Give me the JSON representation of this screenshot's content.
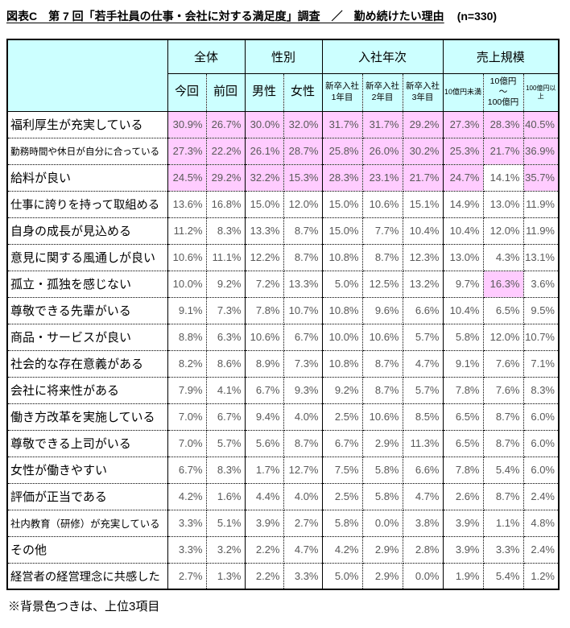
{
  "colors": {
    "header_bg": "#CCFFFF",
    "highlight_bg": "#FFCCFF",
    "value_text": "#595959",
    "border": "#000000"
  },
  "chart_data": {
    "type": "table",
    "title": "図表C　第 7 回「若手社員の仕事・会社に対する満足度」調査　／　勤め続けたい理由",
    "sample_size": "(n=330)",
    "footnote": "※背景色つきは、上位3項目",
    "highlight_rule": "pink background = top 3 items within each column",
    "column_groups": [
      {
        "label": "全体",
        "span": 2
      },
      {
        "label": "性別",
        "span": 2
      },
      {
        "label": "入社年次",
        "span": 3
      },
      {
        "label": "売上規模",
        "span": 3
      }
    ],
    "columns": [
      "今回",
      "前回",
      "男性",
      "女性",
      "新卒入社\n1年目",
      "新卒入社\n2年目",
      "新卒入社\n3年目",
      "10億円未満",
      "10億円\n～\n100億円",
      "100億円以上"
    ],
    "rows": [
      {
        "label": "福利厚生が充実している",
        "values": [
          "30.9%",
          "26.7%",
          "30.0%",
          "32.0%",
          "31.7%",
          "31.7%",
          "29.2%",
          "27.3%",
          "28.3%",
          "40.5%"
        ],
        "pink": [
          0,
          1,
          2,
          3,
          4,
          5,
          6,
          7,
          8,
          9
        ]
      },
      {
        "label": "勤務時間や休日が自分に合っている",
        "values": [
          "27.3%",
          "22.2%",
          "26.1%",
          "28.7%",
          "25.8%",
          "26.0%",
          "30.2%",
          "25.3%",
          "21.7%",
          "36.9%"
        ],
        "pink": [
          0,
          1,
          2,
          3,
          4,
          5,
          6,
          7,
          8,
          9
        ]
      },
      {
        "label": "給料が良い",
        "values": [
          "24.5%",
          "29.2%",
          "32.2%",
          "15.3%",
          "28.3%",
          "23.1%",
          "21.7%",
          "24.7%",
          "14.1%",
          "35.7%"
        ],
        "pink": [
          0,
          1,
          2,
          3,
          4,
          5,
          6,
          7,
          9
        ]
      },
      {
        "label": "仕事に誇りを持って取組める",
        "values": [
          "13.6%",
          "16.8%",
          "15.0%",
          "12.0%",
          "15.0%",
          "10.6%",
          "15.1%",
          "14.9%",
          "13.0%",
          "11.9%"
        ],
        "pink": []
      },
      {
        "label": "自身の成長が見込める",
        "values": [
          "11.2%",
          "8.3%",
          "13.3%",
          "8.7%",
          "15.0%",
          "7.7%",
          "10.4%",
          "10.4%",
          "12.0%",
          "11.9%"
        ],
        "pink": []
      },
      {
        "label": "意見に関する風通しが良い",
        "values": [
          "10.6%",
          "11.1%",
          "12.2%",
          "8.7%",
          "10.8%",
          "8.7%",
          "12.3%",
          "13.0%",
          "4.3%",
          "13.1%"
        ],
        "pink": []
      },
      {
        "label": "孤立・孤独を感じない",
        "values": [
          "10.0%",
          "9.2%",
          "7.2%",
          "13.3%",
          "5.0%",
          "12.5%",
          "13.2%",
          "9.7%",
          "16.3%",
          "3.6%"
        ],
        "pink": [
          8
        ]
      },
      {
        "label": "尊敬できる先輩がいる",
        "values": [
          "9.1%",
          "7.3%",
          "7.8%",
          "10.7%",
          "10.8%",
          "9.6%",
          "6.6%",
          "10.4%",
          "6.5%",
          "9.5%"
        ],
        "pink": []
      },
      {
        "label": "商品・サービスが良い",
        "values": [
          "8.8%",
          "6.3%",
          "10.6%",
          "6.7%",
          "10.0%",
          "10.6%",
          "5.7%",
          "5.8%",
          "12.0%",
          "10.7%"
        ],
        "pink": []
      },
      {
        "label": "社会的な存在意義がある",
        "values": [
          "8.2%",
          "8.6%",
          "8.9%",
          "7.3%",
          "10.8%",
          "8.7%",
          "4.7%",
          "9.1%",
          "7.6%",
          "7.1%"
        ],
        "pink": []
      },
      {
        "label": "会社に将来性がある",
        "values": [
          "7.9%",
          "4.1%",
          "6.7%",
          "9.3%",
          "9.2%",
          "8.7%",
          "5.7%",
          "7.8%",
          "7.6%",
          "8.3%"
        ],
        "pink": []
      },
      {
        "label": "働き方改革を実施している",
        "values": [
          "7.0%",
          "6.7%",
          "9.4%",
          "4.0%",
          "2.5%",
          "10.6%",
          "8.5%",
          "6.5%",
          "8.7%",
          "6.0%"
        ],
        "pink": []
      },
      {
        "label": "尊敬できる上司がいる",
        "values": [
          "7.0%",
          "5.7%",
          "5.6%",
          "8.7%",
          "6.7%",
          "2.9%",
          "11.3%",
          "6.5%",
          "8.7%",
          "6.0%"
        ],
        "pink": []
      },
      {
        "label": "女性が働きやすい",
        "values": [
          "6.7%",
          "8.3%",
          "1.7%",
          "12.7%",
          "7.5%",
          "5.8%",
          "6.6%",
          "7.8%",
          "5.4%",
          "6.0%"
        ],
        "pink": []
      },
      {
        "label": "評価が正当である",
        "values": [
          "4.2%",
          "1.6%",
          "4.4%",
          "4.0%",
          "2.5%",
          "5.8%",
          "4.7%",
          "2.6%",
          "8.7%",
          "2.4%"
        ],
        "pink": []
      },
      {
        "label": "社内教育（研修）が充実している",
        "values": [
          "3.3%",
          "5.1%",
          "3.9%",
          "2.7%",
          "5.8%",
          "0.0%",
          "3.8%",
          "3.9%",
          "1.1%",
          "4.8%"
        ],
        "pink": []
      },
      {
        "label": "その他",
        "values": [
          "3.3%",
          "3.2%",
          "2.2%",
          "4.7%",
          "4.2%",
          "2.9%",
          "2.8%",
          "3.9%",
          "3.3%",
          "2.4%"
        ],
        "pink": []
      },
      {
        "label": "経営者の経営理念に共感した",
        "values": [
          "2.7%",
          "1.3%",
          "2.2%",
          "3.3%",
          "5.0%",
          "2.9%",
          "0.0%",
          "1.9%",
          "5.4%",
          "1.2%"
        ],
        "pink": []
      }
    ]
  }
}
